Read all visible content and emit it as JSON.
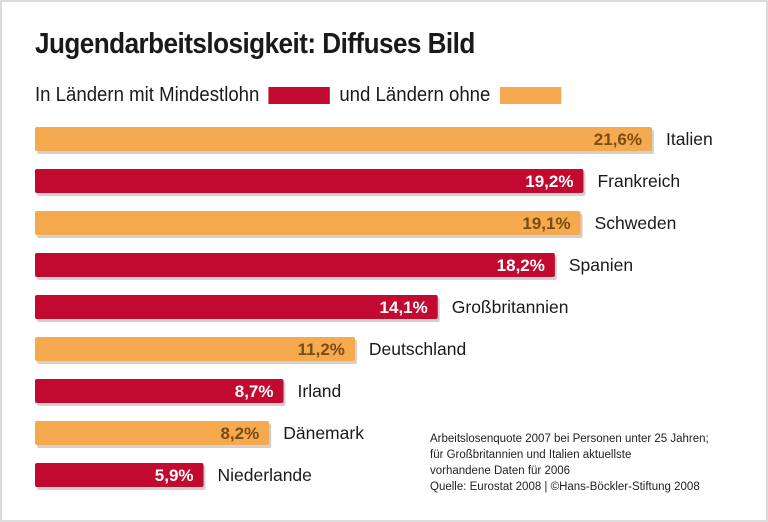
{
  "chart_data": {
    "type": "bar",
    "orientation": "horizontal",
    "title": "Jugendarbeitslosigkeit: Diffuses Bild",
    "legend": [
      {
        "label": "In Ländern mit Mindestlohn",
        "color": "#c20a31"
      },
      {
        "label": "und Ländern ohne",
        "color": "#f5aa4f"
      }
    ],
    "categories": [
      "Italien",
      "Frankreich",
      "Schweden",
      "Spanien",
      "Großbritannien",
      "Deutschland",
      "Irland",
      "Dänemark",
      "Niederlande"
    ],
    "values": [
      21.6,
      19.2,
      19.1,
      18.2,
      14.1,
      11.2,
      8.7,
      8.2,
      5.9
    ],
    "value_labels": [
      "21,6%",
      "19,2%",
      "19,1%",
      "18,2%",
      "14,1%",
      "11,2%",
      "8,7%",
      "8,2%",
      "5,9%"
    ],
    "groups": [
      "ohne",
      "mit",
      "ohne",
      "mit",
      "mit",
      "ohne",
      "mit",
      "ohne",
      "mit"
    ],
    "unit": "%",
    "xlim": [
      0,
      21.6
    ],
    "grid": false
  },
  "colors": {
    "mit": "#c20a31",
    "ohne": "#f5aa4f",
    "label_on_orange": "#7a4c14",
    "label_on_red": "#ffffff"
  },
  "note": {
    "lines": [
      "Arbeitslosenquote 2007 bei Personen unter 25 Jahren;",
      "für Großbritannien und Italien aktuellste",
      "vorhandene Daten für 2006",
      "Quelle: Eurostat 2008 | ©Hans-Böckler-Stiftung 2008"
    ]
  }
}
